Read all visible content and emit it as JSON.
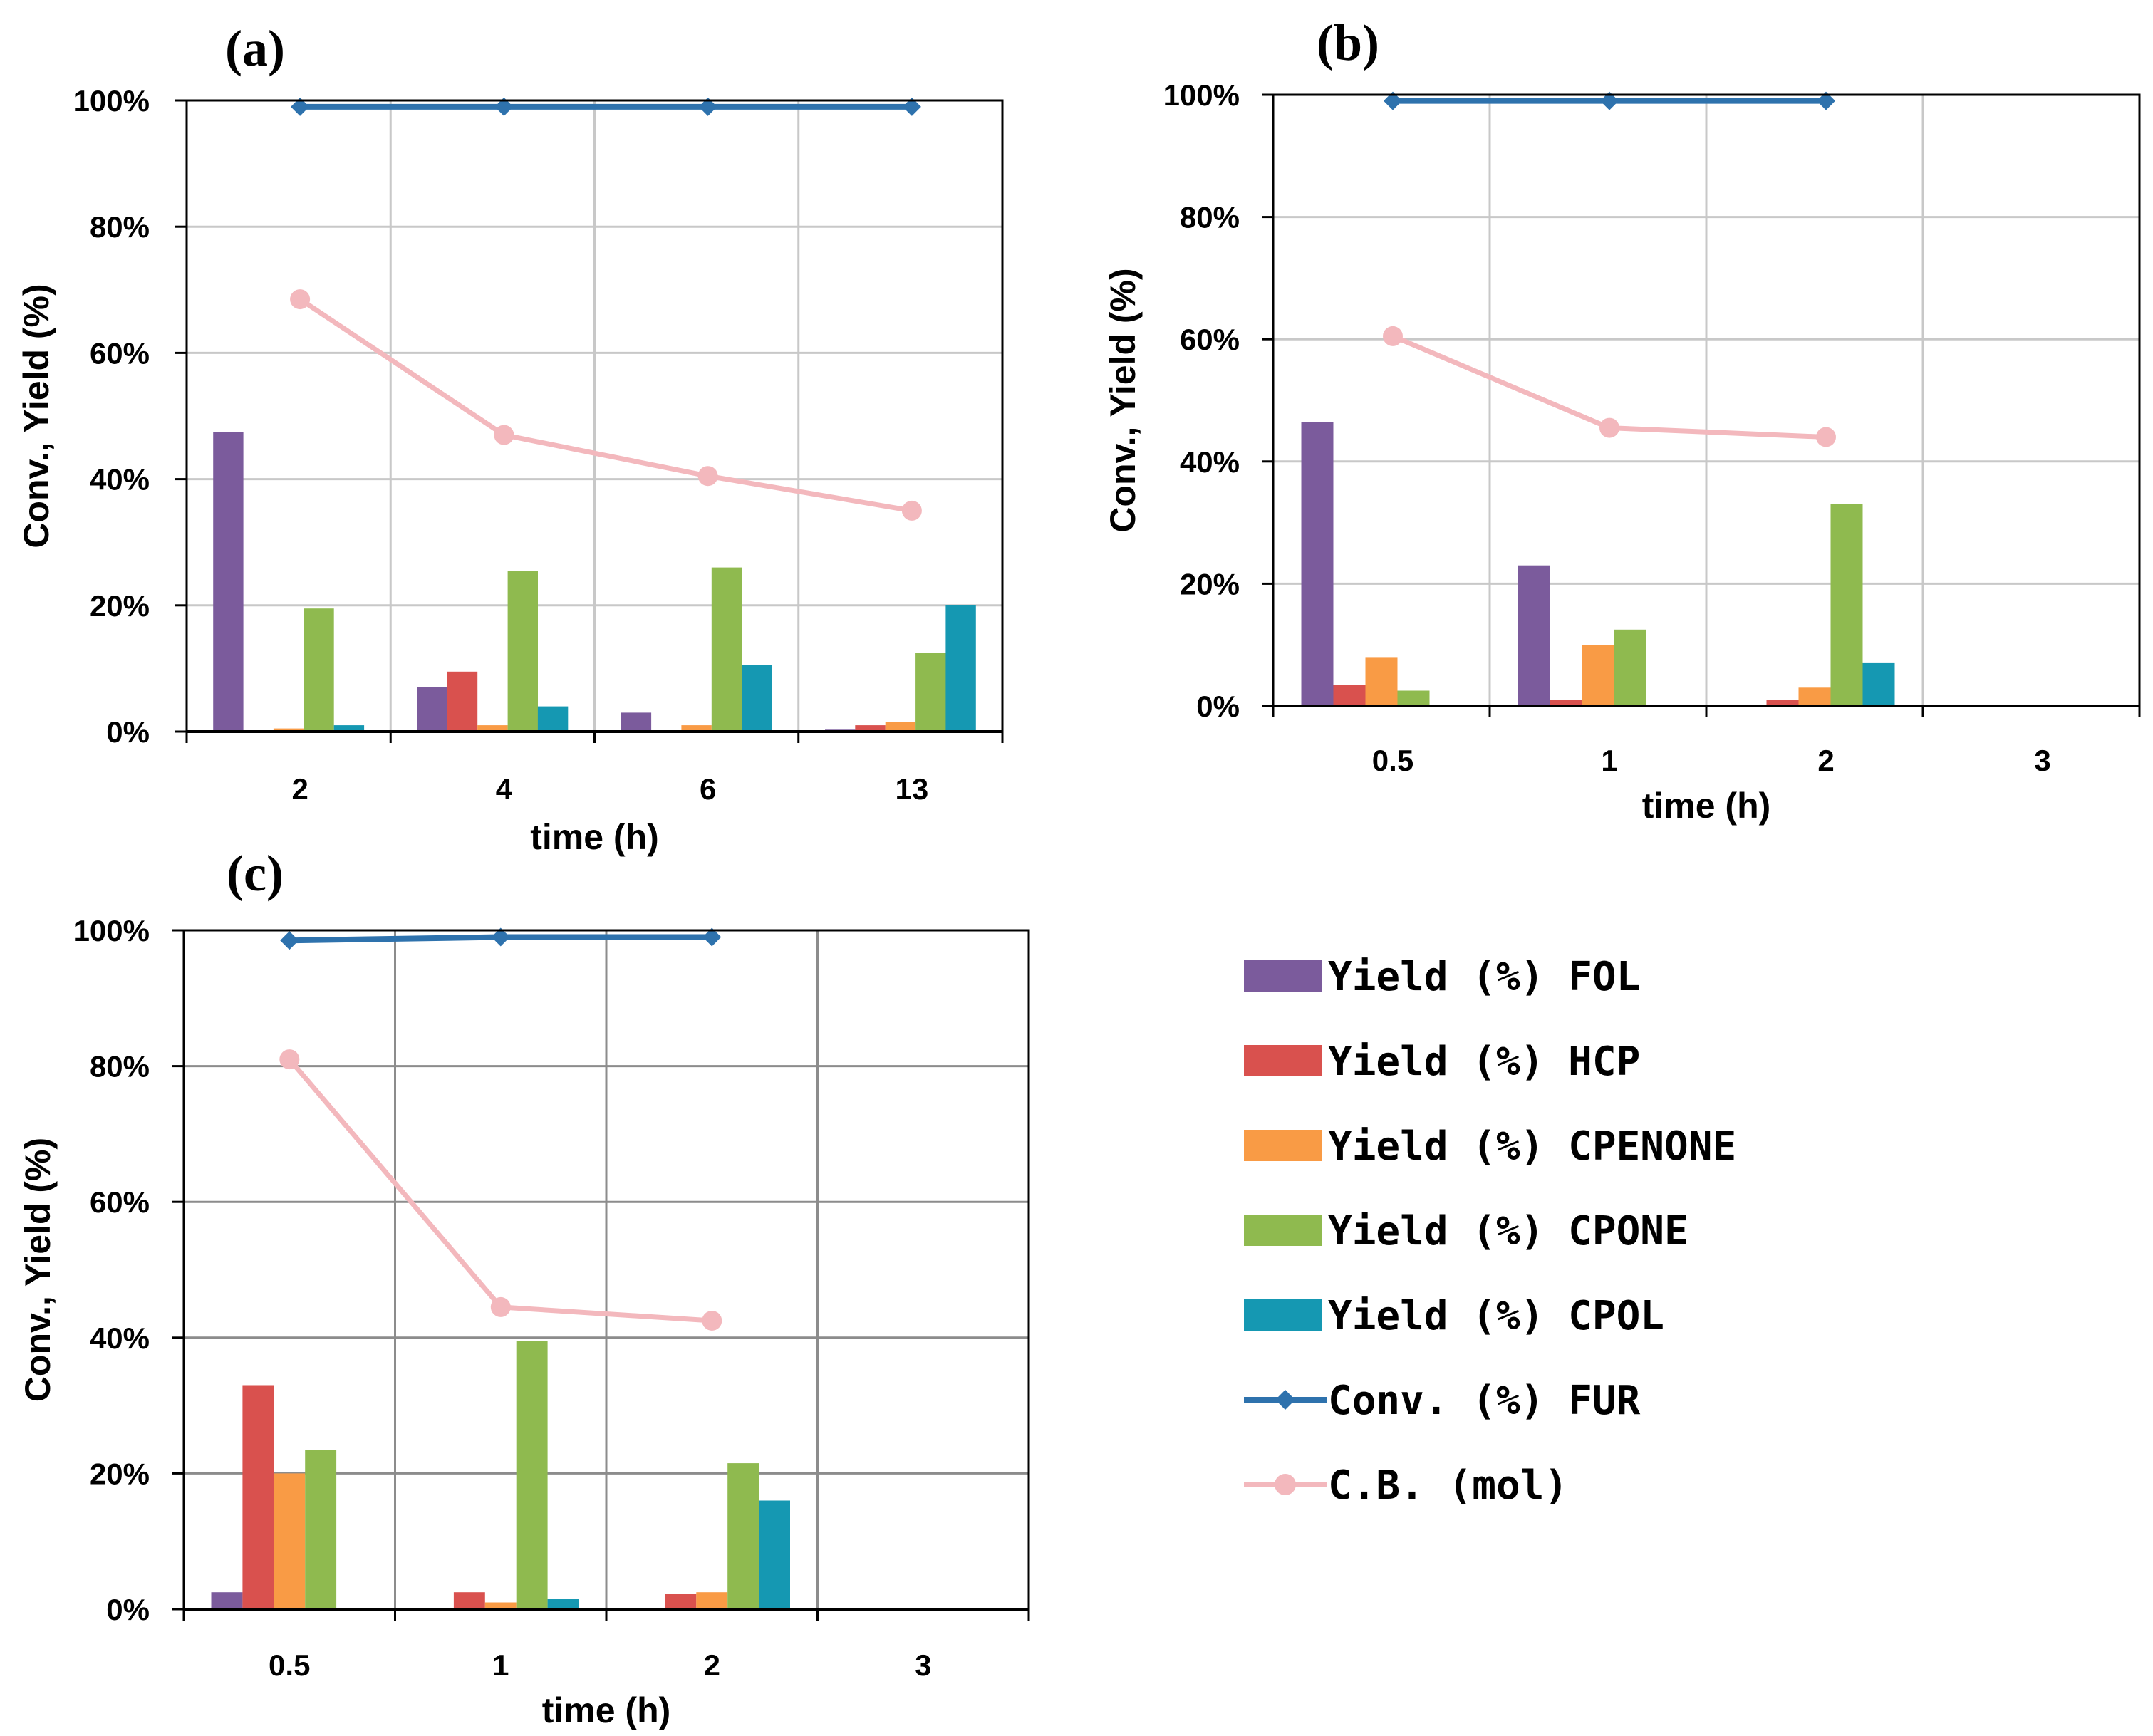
{
  "colors": {
    "FOL": "#7b5b9c",
    "HCP": "#d9514e",
    "CPENONE": "#f99b45",
    "CPONE": "#8fba4f",
    "CPOL": "#1598b2",
    "FUR": "#2e72ad",
    "CB": "#f3b8bd",
    "grid": "#c8c8c8",
    "axis": "#000000"
  },
  "legend": [
    {
      "key": "FOL",
      "label": "Yield (%) FOL",
      "kind": "bar"
    },
    {
      "key": "HCP",
      "label": "Yield (%) HCP",
      "kind": "bar"
    },
    {
      "key": "CPENONE",
      "label": "Yield (%) CPENONE",
      "kind": "bar"
    },
    {
      "key": "CPONE",
      "label": "Yield (%) CPONE",
      "kind": "bar"
    },
    {
      "key": "CPOL",
      "label": "Yield (%) CPOL",
      "kind": "bar"
    },
    {
      "key": "FUR",
      "label": "Conv. (%) FUR",
      "kind": "line-diamond"
    },
    {
      "key": "CB",
      "label": "C.B. (mol)",
      "kind": "line-circle"
    }
  ],
  "chart_data": [
    {
      "id": "a",
      "panel_label": "(a)",
      "type": "bar",
      "xlabel": "time (h)",
      "ylabel": "Conv., Yield (%)",
      "ylim": [
        0,
        100
      ],
      "yticks": [
        "0%",
        "20%",
        "40%",
        "60%",
        "80%",
        "100%"
      ],
      "categories": [
        "2",
        "4",
        "6",
        "13"
      ],
      "bar_series": [
        {
          "key": "FOL",
          "name": "Yield (%) FOL",
          "values": [
            47.5,
            7,
            3,
            0.3
          ]
        },
        {
          "key": "HCP",
          "name": "Yield (%) HCP",
          "values": [
            0,
            9.5,
            0,
            1
          ]
        },
        {
          "key": "CPENONE",
          "name": "Yield (%) CPENONE",
          "values": [
            0.5,
            1,
            1,
            1.5
          ]
        },
        {
          "key": "CPONE",
          "name": "Yield (%) CPONE",
          "values": [
            19.5,
            25.5,
            26,
            12.5
          ]
        },
        {
          "key": "CPOL",
          "name": "Yield (%) CPOL",
          "values": [
            1,
            4,
            10.5,
            20
          ]
        }
      ],
      "line_series": [
        {
          "key": "FUR",
          "name": "Conv. (%) FUR",
          "marker": "diamond",
          "values": [
            99,
            99,
            99,
            99
          ]
        },
        {
          "key": "CB",
          "name": "C.B. (mol)",
          "marker": "circle",
          "values": [
            68.5,
            47,
            40.5,
            35
          ]
        }
      ]
    },
    {
      "id": "b",
      "panel_label": "(b)",
      "type": "bar",
      "xlabel": "time (h)",
      "ylabel": "Conv., Yield (%)",
      "ylim": [
        0,
        100
      ],
      "yticks": [
        "0%",
        "20%",
        "40%",
        "60%",
        "80%",
        "100%"
      ],
      "categories": [
        "0.5",
        "1",
        "2",
        "3"
      ],
      "bar_series": [
        {
          "key": "FOL",
          "name": "Yield (%) FOL",
          "values": [
            46.5,
            23,
            0,
            0
          ]
        },
        {
          "key": "HCP",
          "name": "Yield (%) HCP",
          "values": [
            3.5,
            1,
            1,
            0
          ]
        },
        {
          "key": "CPENONE",
          "name": "Yield (%) CPENONE",
          "values": [
            8,
            10,
            3,
            0
          ]
        },
        {
          "key": "CPONE",
          "name": "Yield (%) CPONE",
          "values": [
            2.5,
            12.5,
            33,
            0
          ]
        },
        {
          "key": "CPOL",
          "name": "Yield (%) CPOL",
          "values": [
            0,
            0,
            7,
            0
          ]
        }
      ],
      "line_series": [
        {
          "key": "FUR",
          "name": "Conv. (%) FUR",
          "marker": "diamond",
          "values": [
            99,
            99,
            99,
            null
          ]
        },
        {
          "key": "CB",
          "name": "C.B. (mol)",
          "marker": "circle",
          "values": [
            60.5,
            45.5,
            44,
            null
          ]
        }
      ]
    },
    {
      "id": "c",
      "panel_label": "(c)",
      "type": "bar",
      "xlabel": "time (h)",
      "ylabel": "Conv., Yield (%)",
      "ylim": [
        0,
        100
      ],
      "yticks": [
        "0%",
        "20%",
        "40%",
        "60%",
        "80%",
        "100%"
      ],
      "categories": [
        "0.5",
        "1",
        "2",
        "3"
      ],
      "bar_series": [
        {
          "key": "FOL",
          "name": "Yield (%) FOL",
          "values": [
            2.5,
            0,
            0,
            0
          ]
        },
        {
          "key": "HCP",
          "name": "Yield (%) HCP",
          "values": [
            33,
            2.5,
            2.3,
            0
          ]
        },
        {
          "key": "CPENONE",
          "name": "Yield (%) CPENONE",
          "values": [
            20,
            1,
            2.5,
            0
          ]
        },
        {
          "key": "CPONE",
          "name": "Yield (%) CPONE",
          "values": [
            23.5,
            39.5,
            21.5,
            0
          ]
        },
        {
          "key": "CPOL",
          "name": "Yield (%) CPOL",
          "values": [
            0,
            1.5,
            16,
            0
          ]
        }
      ],
      "line_series": [
        {
          "key": "FUR",
          "name": "Conv. (%) FUR",
          "marker": "diamond",
          "values": [
            98.5,
            99,
            99,
            null
          ]
        },
        {
          "key": "CB",
          "name": "C.B. (mol)",
          "marker": "circle",
          "values": [
            81,
            44.5,
            42.5,
            null
          ]
        }
      ]
    }
  ]
}
